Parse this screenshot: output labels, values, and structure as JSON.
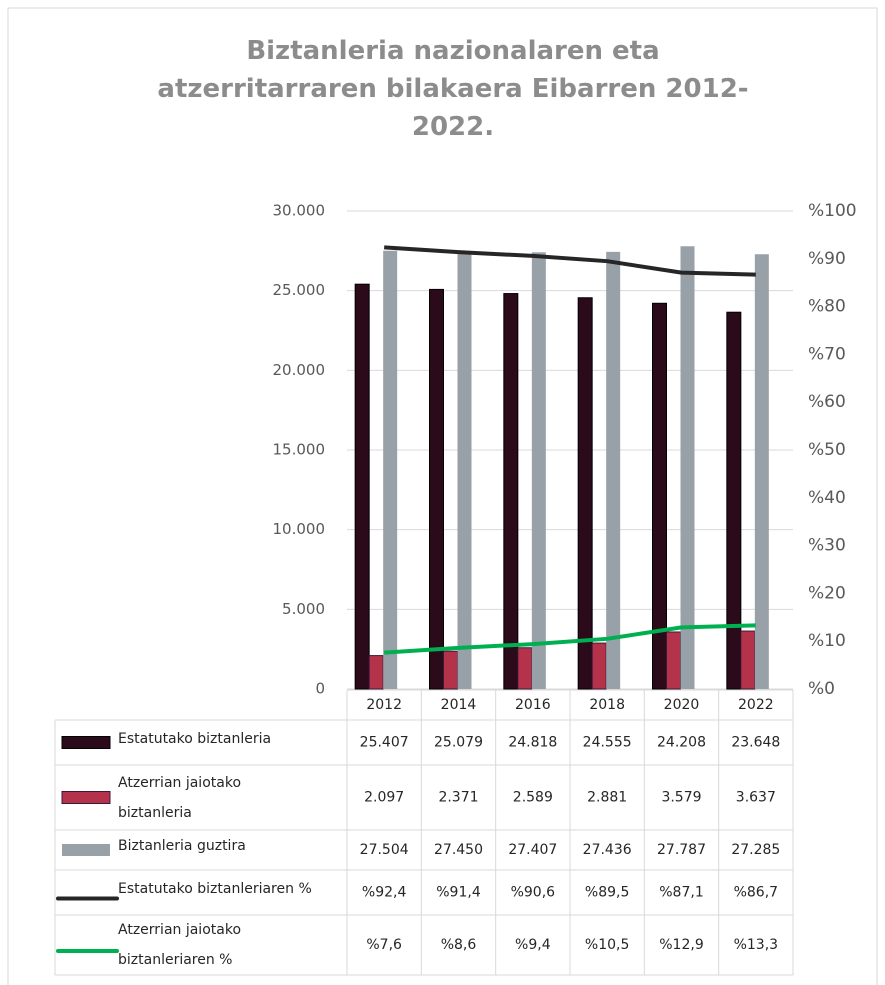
{
  "chart_data": {
    "type": "bar",
    "title": "Biztanleria nazionalaren eta atzerritarraren bilakaera Eibarren 2012-2022.",
    "categories": [
      "2012",
      "2014",
      "2016",
      "2018",
      "2020",
      "2022"
    ],
    "series": [
      {
        "name": "Estatutako biztanleria",
        "type": "bar",
        "color": "#2b0a1a",
        "values": [
          25407,
          25079,
          24818,
          24555,
          24208,
          23648
        ],
        "value_labels": [
          "25.407",
          "25.079",
          "24.818",
          "24.555",
          "24.208",
          "23.648"
        ]
      },
      {
        "name": "Atzerrian jaiotako biztanleria",
        "type": "bar",
        "color": "#b5334a",
        "values": [
          2097,
          2371,
          2589,
          2881,
          3579,
          3637
        ],
        "value_labels": [
          "2.097",
          "2.371",
          "2.589",
          "2.881",
          "3.579",
          "3.637"
        ]
      },
      {
        "name": "Biztanleria guztira",
        "type": "bar",
        "color": "#98a0a8",
        "values": [
          27504,
          27450,
          27407,
          27436,
          27787,
          27285
        ],
        "value_labels": [
          "27.504",
          "27.450",
          "27.407",
          "27.436",
          "27.787",
          "27.285"
        ]
      },
      {
        "name": "Estatutako biztanleriaren %",
        "type": "line",
        "axis": "y2",
        "color": "#262626",
        "values": [
          92.4,
          91.4,
          90.6,
          89.5,
          87.1,
          86.7
        ],
        "value_labels": [
          "%92,4",
          "%91,4",
          "%90,6",
          "%89,5",
          "%87,1",
          "%86,7"
        ]
      },
      {
        "name": "Atzerrian jaiotako biztanleriaren %",
        "type": "line",
        "axis": "y2",
        "color": "#00b050",
        "values": [
          7.6,
          8.6,
          9.4,
          10.5,
          12.9,
          13.3
        ],
        "value_labels": [
          "%7,6",
          "%8,6",
          "%9,4",
          "%10,5",
          "%12,9",
          "%13,3"
        ]
      }
    ],
    "ylim": [
      0,
      30000
    ],
    "yticks": [
      0,
      {
        "value": 5000,
        "label": "5.000"
      },
      {
        "value": 10000,
        "label": "10.000"
      },
      {
        "value": 15000,
        "label": "15.000"
      },
      {
        "value": 20000,
        "label": "20.000"
      },
      {
        "value": 25000,
        "label": "25.000"
      },
      {
        "value": 30000,
        "label": "30.000"
      }
    ],
    "y2lim": [
      0,
      100
    ],
    "y2ticks": [
      {
        "value": 0,
        "label": "%0"
      },
      {
        "value": 10,
        "label": "%10"
      },
      {
        "value": 20,
        "label": "%20"
      },
      {
        "value": 30,
        "label": "%30"
      },
      {
        "value": 40,
        "label": "%40"
      },
      {
        "value": 50,
        "label": "%50"
      },
      {
        "value": 60,
        "label": "%60"
      },
      {
        "value": 70,
        "label": "%70"
      },
      {
        "value": 80,
        "label": "%80"
      },
      {
        "value": 90,
        "label": "%90"
      },
      {
        "value": 100,
        "label": "%100"
      }
    ],
    "grid": true
  }
}
